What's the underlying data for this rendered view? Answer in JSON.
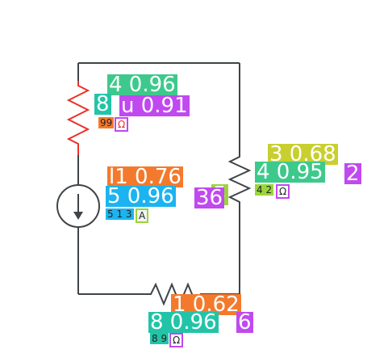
{
  "colors": {
    "wire": "#3f4448",
    "resistor_highlight": "#e8322b",
    "green": "#3ec98c",
    "purple": "#c049f0",
    "yellow": "#c9cf2e",
    "orange": "#f37a2c",
    "cyan": "#1bb4f0",
    "teal": "#22c4a8",
    "lime": "#9bd53a",
    "navy": "#2c3e80"
  },
  "circuit": {
    "components": [
      {
        "id": "R_left",
        "type": "resistor",
        "highlighted": true
      },
      {
        "id": "I_source",
        "type": "current-source",
        "arrow": "down"
      },
      {
        "id": "R_right",
        "type": "resistor"
      },
      {
        "id": "R_bottom",
        "type": "resistor"
      }
    ]
  },
  "labels": {
    "r_left": {
      "a": "4 0.96",
      "b": "u 0.91",
      "c": "8",
      "d": "99",
      "unit": "Ω"
    },
    "source": {
      "a": "l1 0.76",
      "b": "5 0.96",
      "c": "36",
      "d": "5",
      "e": "5 1 3",
      "unit": "A"
    },
    "r_right": {
      "a": "3 0.68",
      "b": "4 0.95",
      "c": "2",
      "d": "4 2",
      "unit": "Ω"
    },
    "r_bottom": {
      "a": "1 0.62",
      "b": "8 0.96",
      "c": "6",
      "d": "8 9",
      "unit": "Ω"
    }
  }
}
